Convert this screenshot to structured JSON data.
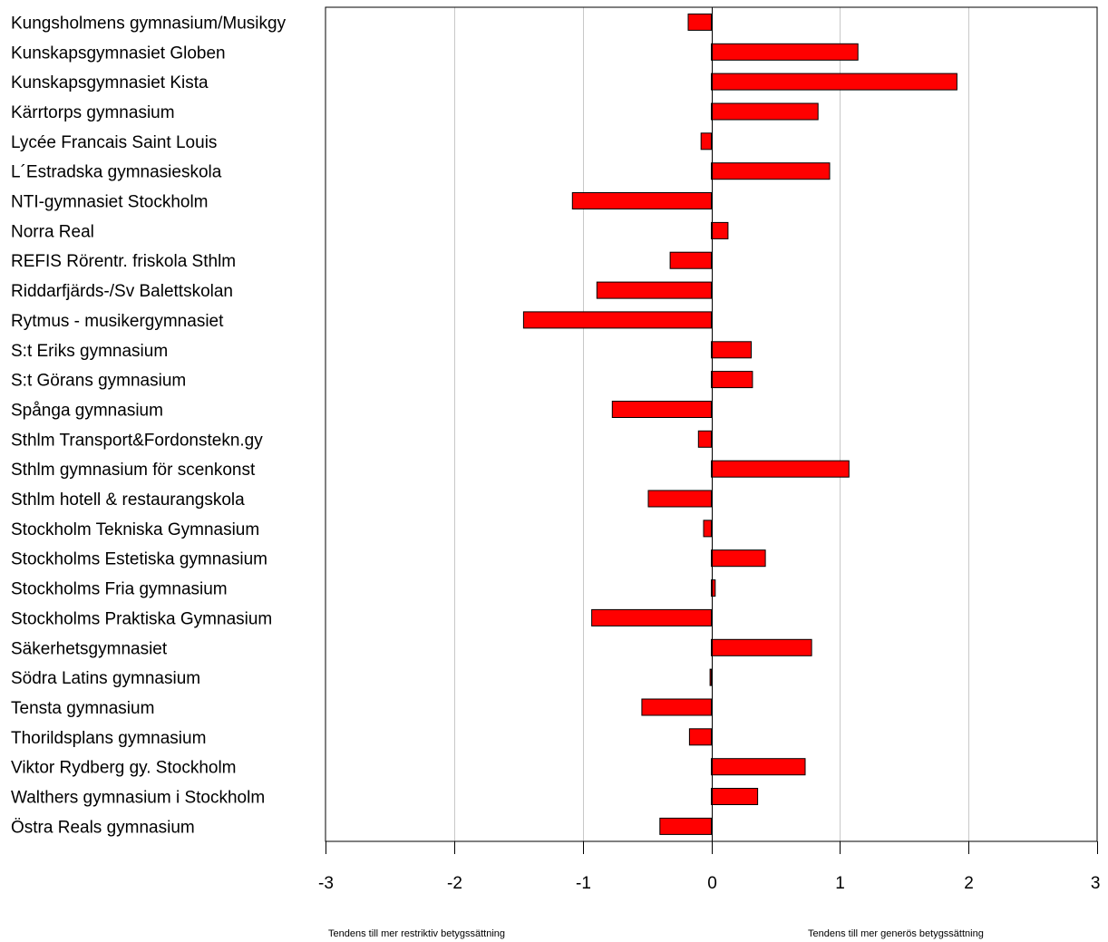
{
  "chart_data": {
    "type": "bar",
    "orientation": "horizontal",
    "title": "",
    "xlabel": "",
    "ylabel": "",
    "xlim": [
      -3,
      3
    ],
    "xticks": [
      -3,
      -2,
      -1,
      0,
      1,
      2,
      3
    ],
    "grid": "vertical",
    "legend": "none",
    "bar_color": "#ff0000",
    "bar_edge_color": "#000000",
    "grid_color": "#c8c8c8",
    "categories": [
      "Kungsholmens gymnasium/Musikgy",
      "Kunskapsgymnasiet Globen",
      "Kunskapsgymnasiet Kista",
      "Kärrtorps gymnasium",
      "Lycée Francais Saint Louis",
      "L´Estradska gymnasieskola",
      "NTI-gymnasiet Stockholm",
      "Norra Real",
      "REFIS Rörentr. friskola Sthlm",
      "Riddarfjärds-/Sv Balettskolan",
      "Rytmus - musikergymnasiet",
      "S:t Eriks gymnasium",
      "S:t Görans gymnasium",
      "Spånga gymnasium",
      "Sthlm Transport&Fordonstekn.gy",
      "Sthlm gymnasium för scenkonst",
      "Sthlm hotell & restaurangskola",
      "Stockholm Tekniska Gymnasium",
      "Stockholms Estetiska gymnasium",
      "Stockholms Fria gymnasium",
      "Stockholms Praktiska Gymnasium",
      "Säkerhetsgymnasiet",
      "Södra Latins gymnasium",
      "Tensta gymnasium",
      "Thorildsplans gymnasium",
      "Viktor Rydberg gy. Stockholm",
      "Walthers gymnasium i Stockholm",
      "Östra Reals gymnasium"
    ],
    "values": [
      -0.18,
      1.14,
      1.91,
      0.83,
      -0.08,
      0.92,
      -1.08,
      0.13,
      -0.32,
      -0.89,
      -1.46,
      0.31,
      0.32,
      -0.77,
      -0.1,
      1.07,
      -0.49,
      -0.06,
      0.42,
      0.03,
      -0.93,
      0.78,
      -0.01,
      -0.54,
      -0.17,
      0.73,
      0.36,
      -0.4
    ],
    "annotations": {
      "left": "Tendens till mer restriktiv betygssättning",
      "right": "Tendens till mer generös betygssättning"
    }
  }
}
